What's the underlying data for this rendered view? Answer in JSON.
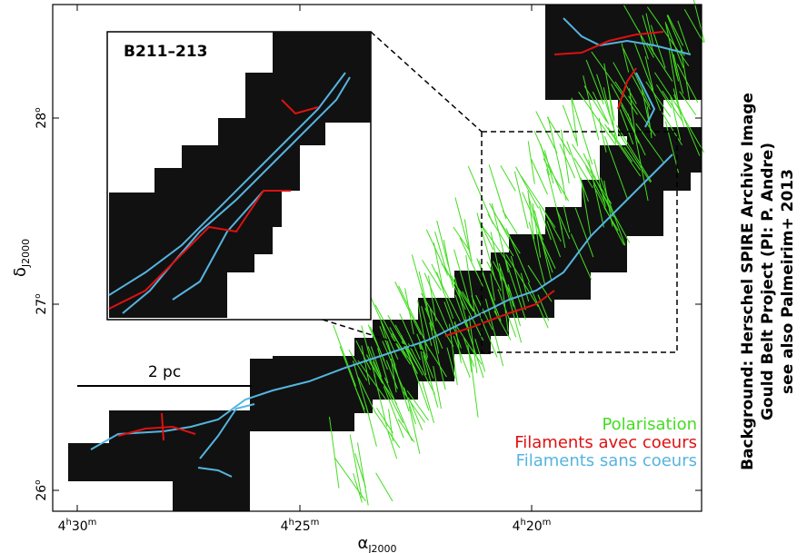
{
  "figure": {
    "x_axis": {
      "symbol": "α",
      "subscript": "J2000",
      "ticks": [
        [
          "4",
          "h",
          "30",
          "m"
        ],
        [
          "4",
          "h",
          "25",
          "m"
        ],
        [
          "4",
          "h",
          "20",
          "m"
        ]
      ]
    },
    "y_axis": {
      "symbol": "δ",
      "subscript": "J2000",
      "ticks": [
        [
          "28",
          "o"
        ],
        [
          "27",
          "o"
        ],
        [
          "26",
          "o"
        ]
      ]
    },
    "inset_title": "B211–213",
    "scale_bar": "2 pc",
    "legend": [
      {
        "name": "Polarisation",
        "color": "#44dd22"
      },
      {
        "name": "Filaments avec coeurs",
        "color": "#dd1111"
      },
      {
        "name": "Filaments sans coeurs",
        "color": "#55b4e0"
      }
    ],
    "credit": [
      "Background: Herschel SPIRE Archive Image",
      "Gould Belt Project (PI: P. Andre)",
      "see also Palmeirim+ 2013"
    ]
  }
}
